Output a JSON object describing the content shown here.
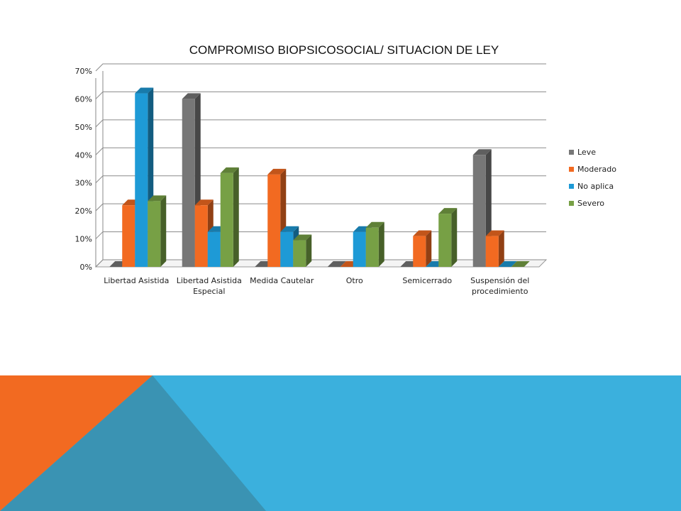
{
  "colors": {
    "leve": "#777777",
    "moderado": "#F26A21",
    "no_aplica": "#1E9AD6",
    "severo": "#77A045",
    "band_blue": "#3BB0DD",
    "band_orange": "#F26A21",
    "band_dark": "#3A93B3"
  },
  "chart_data": {
    "type": "bar",
    "title": "COMPROMISO BIOPSICOSOCIAL/ SITUACION DE LEY",
    "xlabel": "",
    "ylabel": "",
    "ylim": [
      0,
      0.7
    ],
    "y_ticks": [
      "0%",
      "10%",
      "20%",
      "30%",
      "40%",
      "50%",
      "60%",
      "70%"
    ],
    "grid": true,
    "three_d": true,
    "legend_position": "right",
    "categories": [
      [
        "Libertad Asistida"
      ],
      [
        "Libertad Asistida",
        "Especial"
      ],
      [
        "Medida Cautelar"
      ],
      [
        "Otro"
      ],
      [
        "Semicerrado"
      ],
      [
        "Suspensión del",
        "procedimiento"
      ]
    ],
    "series": [
      {
        "name": "Leve",
        "color_key": "leve",
        "values": [
          0,
          0.6,
          0,
          0,
          0,
          0.4
        ]
      },
      {
        "name": "Moderado",
        "color_key": "moderado",
        "values": [
          0.22,
          0.22,
          0.33,
          0,
          0.11,
          0.11
        ]
      },
      {
        "name": "No aplica",
        "color_key": "no_aplica",
        "values": [
          0.62,
          0.125,
          0.125,
          0.125,
          0,
          0
        ]
      },
      {
        "name": "Severo",
        "color_key": "severo",
        "values": [
          0.235,
          0.335,
          0.095,
          0.14,
          0.19,
          0
        ]
      }
    ]
  }
}
